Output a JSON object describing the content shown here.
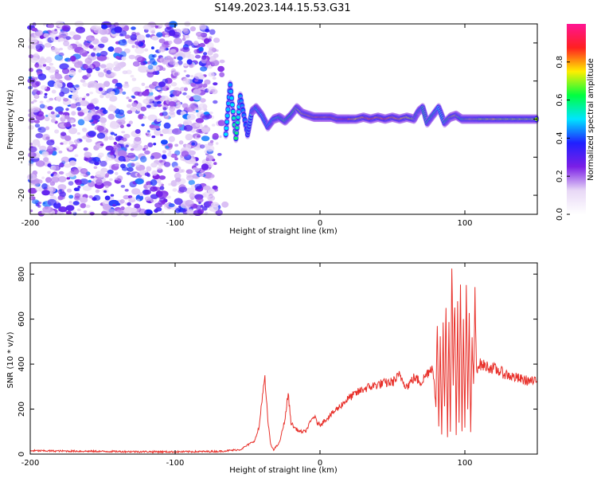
{
  "figure": {
    "title": "S149.2023.144.15.53.G31"
  },
  "chart_data": [
    {
      "type": "heatmap",
      "xlabel": "Height of straight line (km)",
      "ylabel": "Frequency (Hz)",
      "xlim": [
        -200,
        150
      ],
      "ylim": [
        -25,
        25
      ],
      "x_ticks": [
        -200,
        -100,
        0,
        100
      ],
      "y_ticks": [
        -20,
        -10,
        0,
        10,
        20
      ],
      "colorbar": {
        "label": "Normalized spectral amplitude",
        "range": [
          0,
          1
        ],
        "ticks": [
          "0.0",
          "0.2",
          "0.4",
          "0.6",
          "0.8"
        ],
        "colormap": [
          "#ffffff",
          "#e8d8f6",
          "#7b1fe6",
          "#2020ff",
          "#00e5ff",
          "#00ff40",
          "#ffee00",
          "#ff2020",
          "#ff1493"
        ]
      },
      "noise_region": {
        "x_range": [
          -200,
          -65
        ],
        "y_range": [
          -25,
          25
        ]
      },
      "ridge": [
        {
          "x": -65,
          "y": -4,
          "a": 0.5
        },
        {
          "x": -62,
          "y": 9,
          "a": 0.45
        },
        {
          "x": -58,
          "y": -5,
          "a": 0.6
        },
        {
          "x": -55,
          "y": 6,
          "a": 0.45
        },
        {
          "x": -50,
          "y": -4,
          "a": 0.4
        },
        {
          "x": -47,
          "y": 2,
          "a": 0.5
        },
        {
          "x": -44,
          "y": 3,
          "a": 0.55
        },
        {
          "x": -40,
          "y": 1,
          "a": 0.5
        },
        {
          "x": -36,
          "y": -2,
          "a": 0.45
        },
        {
          "x": -32,
          "y": 0,
          "a": 0.55
        },
        {
          "x": -28,
          "y": 0.5,
          "a": 0.6
        },
        {
          "x": -24,
          "y": -0.5,
          "a": 0.65
        },
        {
          "x": -20,
          "y": 1,
          "a": 0.6
        },
        {
          "x": -16,
          "y": 3,
          "a": 0.7
        },
        {
          "x": -12,
          "y": 1.5,
          "a": 0.75
        },
        {
          "x": -8,
          "y": 1,
          "a": 0.8
        },
        {
          "x": -4,
          "y": 0.5,
          "a": 0.8
        },
        {
          "x": 0,
          "y": 0.5,
          "a": 0.85
        },
        {
          "x": 4,
          "y": 0.5,
          "a": 0.8
        },
        {
          "x": 8,
          "y": 0.5,
          "a": 0.85
        },
        {
          "x": 12,
          "y": 0,
          "a": 0.8
        },
        {
          "x": 16,
          "y": 0,
          "a": 0.9
        },
        {
          "x": 20,
          "y": 0,
          "a": 0.85
        },
        {
          "x": 25,
          "y": 0,
          "a": 0.75
        },
        {
          "x": 30,
          "y": 0.5,
          "a": 0.8
        },
        {
          "x": 35,
          "y": 0,
          "a": 0.85
        },
        {
          "x": 40,
          "y": 0.5,
          "a": 0.8
        },
        {
          "x": 45,
          "y": 0,
          "a": 0.85
        },
        {
          "x": 50,
          "y": 0.5,
          "a": 0.8
        },
        {
          "x": 55,
          "y": 0,
          "a": 0.8
        },
        {
          "x": 60,
          "y": 0.5,
          "a": 0.75
        },
        {
          "x": 65,
          "y": 0,
          "a": 0.7
        },
        {
          "x": 68,
          "y": 2,
          "a": 0.6
        },
        {
          "x": 71,
          "y": 3,
          "a": 0.6
        },
        {
          "x": 74,
          "y": -1,
          "a": 0.6
        },
        {
          "x": 78,
          "y": 1,
          "a": 0.6
        },
        {
          "x": 82,
          "y": 3,
          "a": 0.5
        },
        {
          "x": 86,
          "y": -1,
          "a": 0.55
        },
        {
          "x": 90,
          "y": 0.5,
          "a": 0.7
        },
        {
          "x": 94,
          "y": 1,
          "a": 0.75
        },
        {
          "x": 98,
          "y": 0,
          "a": 0.6
        },
        {
          "x": 102,
          "y": 0,
          "a": 0.7
        },
        {
          "x": 106,
          "y": 0,
          "a": 0.75
        },
        {
          "x": 110,
          "y": 0,
          "a": 0.7
        },
        {
          "x": 115,
          "y": 0,
          "a": 0.7
        },
        {
          "x": 120,
          "y": 0,
          "a": 0.75
        },
        {
          "x": 125,
          "y": 0,
          "a": 0.7
        },
        {
          "x": 130,
          "y": 0,
          "a": 0.7
        },
        {
          "x": 135,
          "y": 0,
          "a": 0.7
        },
        {
          "x": 140,
          "y": 0,
          "a": 0.7
        },
        {
          "x": 145,
          "y": 0,
          "a": 0.7
        },
        {
          "x": 150,
          "y": 0,
          "a": 0.7
        }
      ]
    },
    {
      "type": "line",
      "xlabel": "Height of straight line (km)",
      "ylabel": "SNR (10 * v/v)",
      "xlim": [
        -200,
        150
      ],
      "ylim": [
        0,
        850
      ],
      "x_ticks": [
        -200,
        -100,
        0,
        100
      ],
      "y_ticks": [
        0,
        200,
        400,
        600,
        800
      ],
      "series": [
        {
          "color": "#e8302a",
          "x": [
            -200,
            -150,
            -100,
            -70,
            -55,
            -45,
            -42,
            -40,
            -38,
            -36,
            -34,
            -32,
            -28,
            -24,
            -22,
            -20,
            -18,
            -14,
            -10,
            -6,
            -4,
            -2,
            0,
            10,
            20,
            30,
            40,
            50,
            55,
            60,
            65,
            70,
            75,
            78,
            80,
            81,
            82,
            83,
            84,
            85,
            86,
            87,
            88,
            89,
            90,
            91,
            92,
            93,
            94,
            95,
            96,
            97,
            98,
            99,
            100,
            101,
            102,
            103,
            104,
            105,
            106,
            107,
            108,
            110,
            115,
            120,
            130,
            140,
            150
          ],
          "y": [
            15,
            12,
            10,
            12,
            20,
            60,
            120,
            250,
            330,
            150,
            40,
            20,
            50,
            160,
            270,
            140,
            120,
            100,
            100,
            150,
            170,
            140,
            130,
            190,
            250,
            290,
            310,
            320,
            350,
            300,
            340,
            320,
            370,
            390,
            200,
            600,
            120,
            520,
            90,
            560,
            200,
            650,
            80,
            600,
            100,
            850,
            300,
            700,
            90,
            650,
            150,
            740,
            100,
            600,
            120,
            720,
            200,
            600,
            100,
            500,
            300,
            700,
            380,
            400,
            390,
            380,
            350,
            330,
            320
          ]
        }
      ]
    }
  ]
}
